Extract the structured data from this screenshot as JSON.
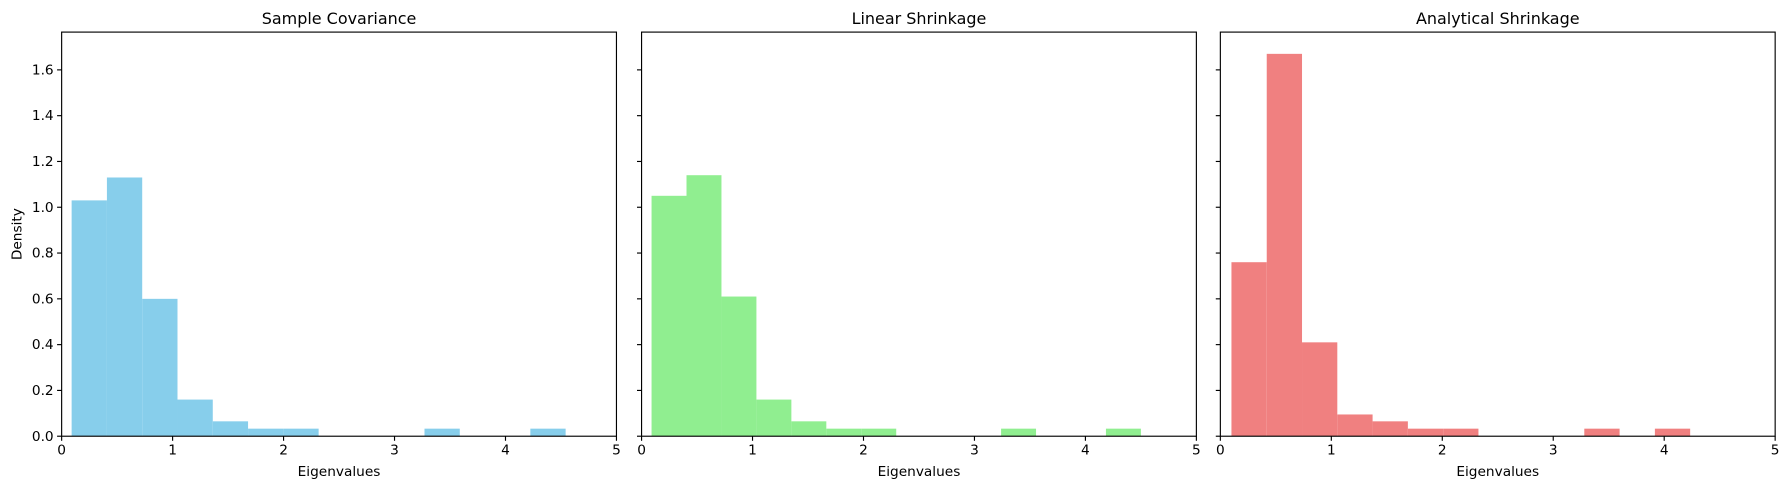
{
  "chart_data": [
    {
      "type": "histogram",
      "title": "Sample Covariance",
      "xlabel": "Eigenvalues",
      "ylabel": "Density",
      "color": "#87ceeb",
      "bins": [
        0.09,
        0.408,
        0.726,
        1.044,
        1.362,
        1.68,
        1.998,
        2.316,
        2.634,
        2.952,
        3.27,
        3.588,
        3.906,
        4.224,
        4.542
      ],
      "values": [
        1.03,
        1.13,
        0.6,
        0.16,
        0.065,
        0.033,
        0.033,
        0,
        0,
        0,
        0.033,
        0,
        0,
        0.033
      ],
      "xlim": [
        0,
        5
      ],
      "xticks": [
        0,
        1,
        2,
        3,
        4,
        5
      ],
      "ylim": [
        0,
        1.765
      ],
      "yticks": [
        {
          "value": 0,
          "label": "0.0"
        },
        0.2,
        0.4,
        0.6,
        0.8,
        {
          "value": 1,
          "label": "1.0"
        },
        1.2,
        1.4,
        1.6
      ]
    },
    {
      "type": "histogram",
      "title": "Linear Shrinkage",
      "xlabel": "Eigenvalues",
      "color": "#90ee90",
      "bins": [
        0.09,
        0.405,
        0.72,
        1.035,
        1.35,
        1.665,
        1.98,
        2.295,
        2.61,
        2.925,
        3.24,
        3.555,
        3.87,
        4.185,
        4.5
      ],
      "values": [
        1.05,
        1.14,
        0.61,
        0.16,
        0.065,
        0.033,
        0.033,
        0,
        0,
        0,
        0.033,
        0,
        0,
        0.033
      ],
      "xlim": [
        0,
        5
      ],
      "xticks": [
        0,
        1,
        2,
        3,
        4,
        5
      ],
      "ylim": [
        0,
        1.765
      ],
      "yticks": [
        0,
        0.2,
        0.4,
        0.6,
        0.8,
        1,
        1.2,
        1.4,
        1.6
      ]
    },
    {
      "type": "histogram",
      "title": "Analytical Shrinkage",
      "xlabel": "Eigenvalues",
      "color": "#f08080",
      "bins": [
        0.1,
        0.418,
        0.736,
        1.054,
        1.372,
        1.69,
        2.008,
        2.326,
        2.644,
        2.962,
        3.28,
        3.598,
        3.916,
        4.234
      ],
      "values": [
        0.76,
        1.67,
        0.41,
        0.095,
        0.065,
        0.033,
        0.033,
        0,
        0,
        0,
        0.033,
        0,
        0.033
      ],
      "xlim": [
        0,
        5
      ],
      "xticks": [
        0,
        1,
        2,
        3,
        4,
        5
      ],
      "ylim": [
        0,
        1.765
      ],
      "yticks": [
        0,
        0.2,
        0.4,
        0.6,
        0.8,
        1,
        1.2,
        1.4,
        1.6
      ]
    }
  ]
}
